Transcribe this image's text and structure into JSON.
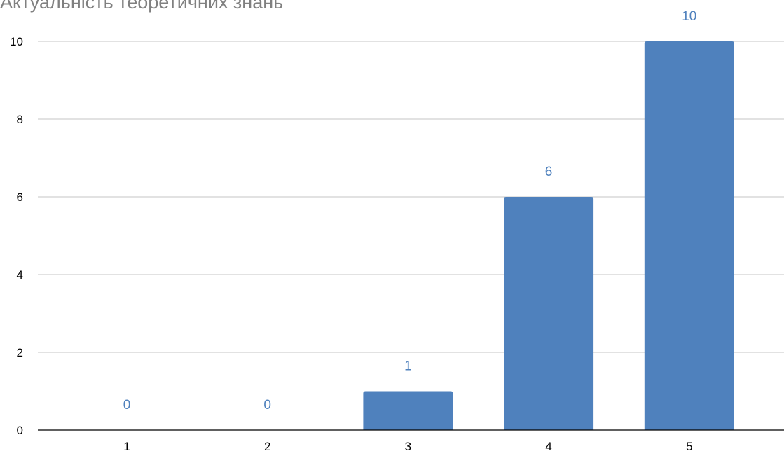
{
  "chart_data": {
    "type": "bar",
    "title": "Актуальність теоретичних знань",
    "xlabel": "",
    "ylabel": "",
    "categories": [
      "1",
      "2",
      "3",
      "4",
      "5"
    ],
    "values": [
      0,
      0,
      1,
      6,
      10
    ],
    "ylim": [
      0,
      10
    ],
    "yticks": [
      0,
      2,
      4,
      6,
      8,
      10
    ],
    "grid": true,
    "legend": "none",
    "data_labels": true,
    "bar_color": "#4F81BD",
    "label_color": "#4F81BD"
  }
}
